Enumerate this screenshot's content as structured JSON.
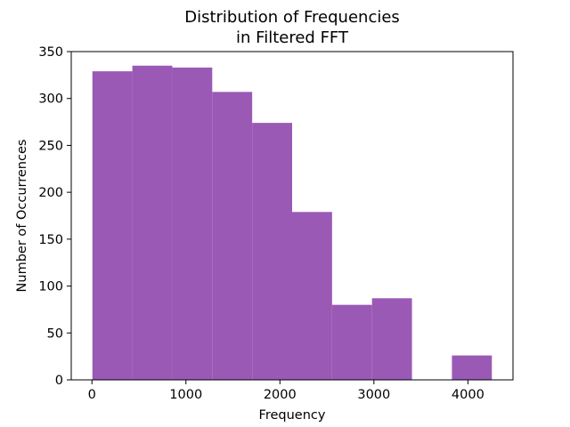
{
  "chart_data": {
    "type": "bar",
    "title": "Distribution of Frequencies\nin Filtered FFT",
    "xlabel": "Frequency",
    "ylabel": "Number of Occurrences",
    "xlim": [
      -220,
      4480
    ],
    "ylim": [
      0,
      350
    ],
    "xticks": [
      0,
      1000,
      2000,
      3000,
      4000
    ],
    "yticks": [
      0,
      50,
      100,
      150,
      200,
      250,
      300,
      350
    ],
    "bin_edges": [
      5,
      430,
      855,
      1280,
      1705,
      2130,
      2555,
      2980,
      3405,
      3830,
      4255
    ],
    "values": [
      329,
      335,
      333,
      307,
      274,
      179,
      80,
      87,
      0,
      26
    ],
    "color": "#9b59b6",
    "grid": false,
    "legend": "none"
  }
}
